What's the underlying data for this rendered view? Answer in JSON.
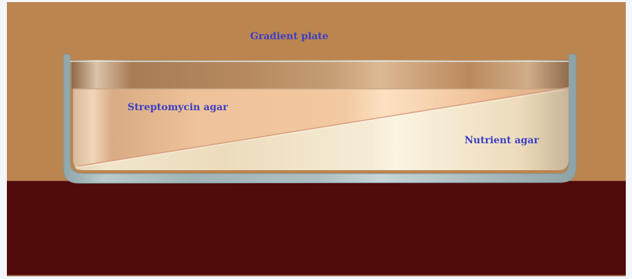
{
  "diagram": {
    "title": "Gradient plate",
    "labels": {
      "streptomycin": "Streptomycin agar",
      "nutrient": "Nutrient agar"
    }
  },
  "colors": {
    "background": "#bb8550",
    "table": "#500a0a",
    "label_text": "#3b3fc4",
    "dish_glass": "#9db1b4",
    "streptomycin_agar": "#f2c8a0",
    "nutrient_agar": "#f2e6c8"
  }
}
